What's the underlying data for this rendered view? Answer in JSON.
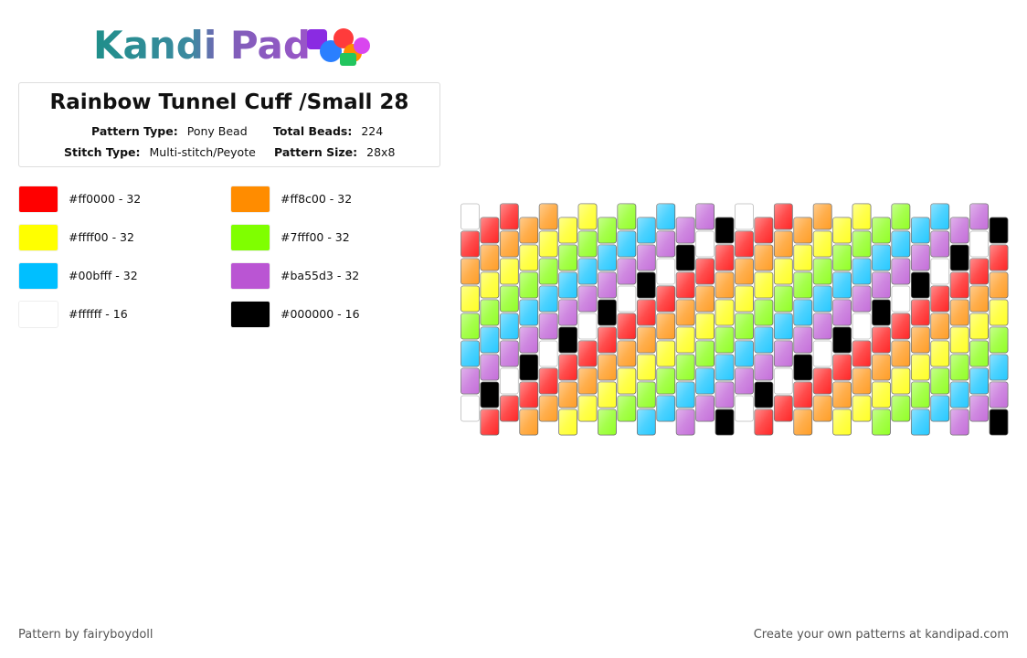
{
  "logo": "Kandi Pad",
  "title": "Rainbow Tunnel Cuff /Small 28",
  "info": [
    {
      "label": "Pattern Type:",
      "value": "Pony Bead"
    },
    {
      "label": "Total Beads:",
      "value": "224"
    },
    {
      "label": "Stitch Type:",
      "value": "Multi-stitch/Peyote"
    },
    {
      "label": "Pattern Size:",
      "value": "28x8"
    }
  ],
  "legend": [
    {
      "label": "#ff0000 - 32",
      "color": "#ff0000"
    },
    {
      "label": "#ff8c00 - 32",
      "color": "#ff8c00"
    },
    {
      "label": "#ffff00 - 32",
      "color": "#ffff00"
    },
    {
      "label": "#7fff00 - 32",
      "color": "#7fff00"
    },
    {
      "label": "#00bfff - 32",
      "color": "#00bfff"
    },
    {
      "label": "#ba55d3 - 32",
      "color": "#ba55d3"
    },
    {
      "label": "#ffffff - 16",
      "color": "#ffffff"
    },
    {
      "label": "#000000 - 16",
      "color": "#000000"
    }
  ],
  "beads": [
    [
      6,
      0,
      1,
      2,
      3,
      4,
      5,
      6
    ],
    [
      0,
      1,
      2,
      3,
      4,
      5,
      7,
      0
    ],
    [
      0,
      1,
      2,
      3,
      4,
      5,
      6,
      0
    ],
    [
      1,
      2,
      3,
      4,
      5,
      7,
      0,
      1
    ],
    [
      1,
      2,
      3,
      4,
      5,
      6,
      0,
      1
    ],
    [
      2,
      3,
      4,
      5,
      7,
      0,
      1,
      2
    ],
    [
      2,
      3,
      4,
      5,
      6,
      0,
      1,
      2
    ],
    [
      3,
      4,
      5,
      7,
      0,
      1,
      2,
      3
    ],
    [
      3,
      4,
      5,
      6,
      0,
      1,
      2,
      3
    ],
    [
      4,
      5,
      7,
      0,
      1,
      2,
      3,
      4
    ],
    [
      4,
      5,
      6,
      0,
      1,
      2,
      3,
      4
    ],
    [
      5,
      7,
      0,
      1,
      2,
      3,
      4,
      5
    ],
    [
      5,
      6,
      0,
      1,
      2,
      3,
      4,
      5
    ],
    [
      7,
      0,
      1,
      2,
      3,
      4,
      5,
      7
    ],
    [
      6,
      0,
      1,
      2,
      3,
      4,
      5,
      6
    ],
    [
      0,
      1,
      2,
      3,
      4,
      5,
      7,
      0
    ],
    [
      0,
      1,
      2,
      3,
      4,
      5,
      6,
      0
    ],
    [
      1,
      2,
      3,
      4,
      5,
      7,
      0,
      1
    ],
    [
      1,
      2,
      3,
      4,
      5,
      6,
      0,
      1
    ],
    [
      2,
      3,
      4,
      5,
      7,
      0,
      1,
      2
    ],
    [
      2,
      3,
      4,
      5,
      6,
      0,
      1,
      2
    ],
    [
      3,
      4,
      5,
      7,
      0,
      1,
      2,
      3
    ],
    [
      3,
      4,
      5,
      6,
      0,
      1,
      2,
      3
    ],
    [
      4,
      5,
      7,
      0,
      1,
      2,
      3,
      4
    ],
    [
      4,
      5,
      6,
      0,
      1,
      2,
      3,
      4
    ],
    [
      5,
      7,
      0,
      1,
      2,
      3,
      4,
      5
    ],
    [
      5,
      6,
      0,
      1,
      2,
      3,
      4,
      5
    ],
    [
      7,
      0,
      1,
      2,
      3,
      4,
      5,
      7
    ]
  ],
  "footer": {
    "left": "Pattern by fairyboydoll",
    "right": "Create your own patterns at kandipad.com"
  }
}
